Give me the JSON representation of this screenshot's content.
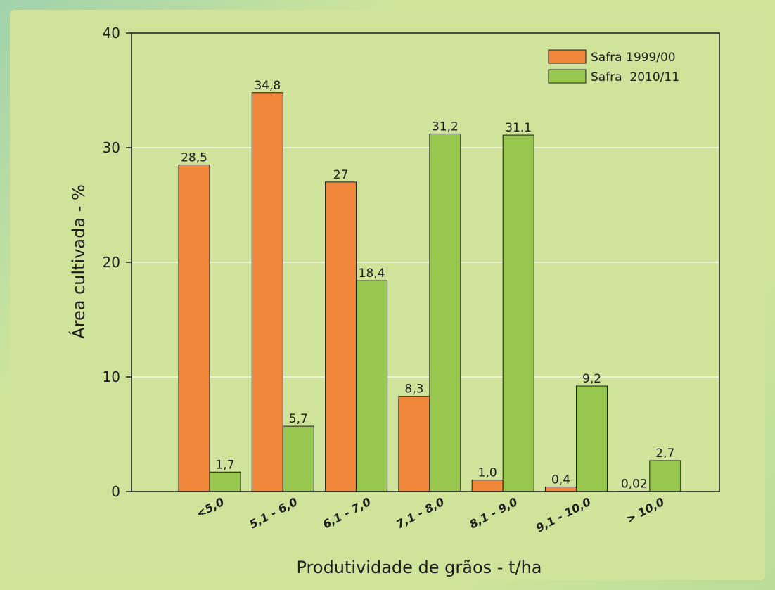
{
  "chart_data": {
    "type": "bar",
    "categories": [
      "<5,0",
      "5,1 - 6,0",
      "6,1 - 7,0",
      "7,1 - 8,0",
      "8,1 - 9,0",
      "9,1 - 10,0",
      "> 10,0"
    ],
    "series": [
      {
        "name": "Safra 1999/00",
        "color": "#f0873b",
        "values": [
          28.5,
          34.8,
          27,
          8.3,
          1.0,
          0.4,
          0.02
        ],
        "labels": [
          "28,5",
          "34,8",
          "27",
          "8,3",
          "1,0",
          "0,4",
          "0,02"
        ]
      },
      {
        "name": "Safra  2010/11",
        "color": "#97c74f",
        "values": [
          1.7,
          5.7,
          18.4,
          31.2,
          31.1,
          9.2,
          2.7
        ],
        "labels": [
          "1,7",
          "5,7",
          "18,4",
          "31,2",
          "31.1",
          "9,2",
          "2,7"
        ]
      }
    ],
    "xlabel": "Produtividade de grãos - t/ha",
    "ylabel": "Área cultivada - %",
    "ylim": [
      0,
      40
    ],
    "yticks": [
      0,
      10,
      20,
      30,
      40
    ],
    "grid": true,
    "legend_position": "top-right"
  }
}
